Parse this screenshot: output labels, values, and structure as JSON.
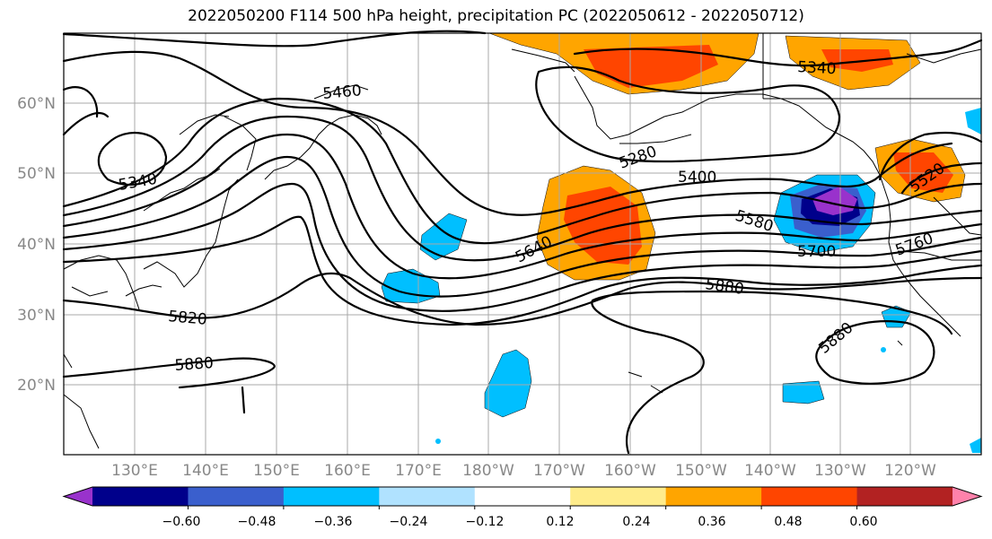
{
  "title": "2022050200 F114 500 hPa height, precipitation PC (2022050612 - 2022050712)",
  "map": {
    "lon_labels": [
      "130°E",
      "140°E",
      "150°E",
      "160°E",
      "170°E",
      "180°W",
      "170°W",
      "160°W",
      "150°W",
      "140°W",
      "130°W",
      "120°W"
    ],
    "lat_labels": [
      "60°N",
      "50°N",
      "40°N",
      "30°N",
      "20°N"
    ],
    "contour_labels": [
      "5460",
      "5340",
      "5280",
      "5400",
      "5580",
      "5640",
      "5700",
      "5520",
      "5760",
      "5880",
      "5820",
      "5880",
      "5880",
      "5340"
    ]
  },
  "colorbar": {
    "ticks": [
      "−0.60",
      "−0.48",
      "−0.36",
      "−0.24",
      "−0.12",
      "0.12",
      "0.24",
      "0.36",
      "0.48",
      "0.60"
    ],
    "colors": [
      "#9932cc",
      "#00008b",
      "#3a5fcd",
      "#00bfff",
      "#b0e2ff",
      "#ffffff",
      "#ffec8b",
      "#ffa500",
      "#ff4500",
      "#b22222",
      "#ff82ab"
    ]
  }
}
